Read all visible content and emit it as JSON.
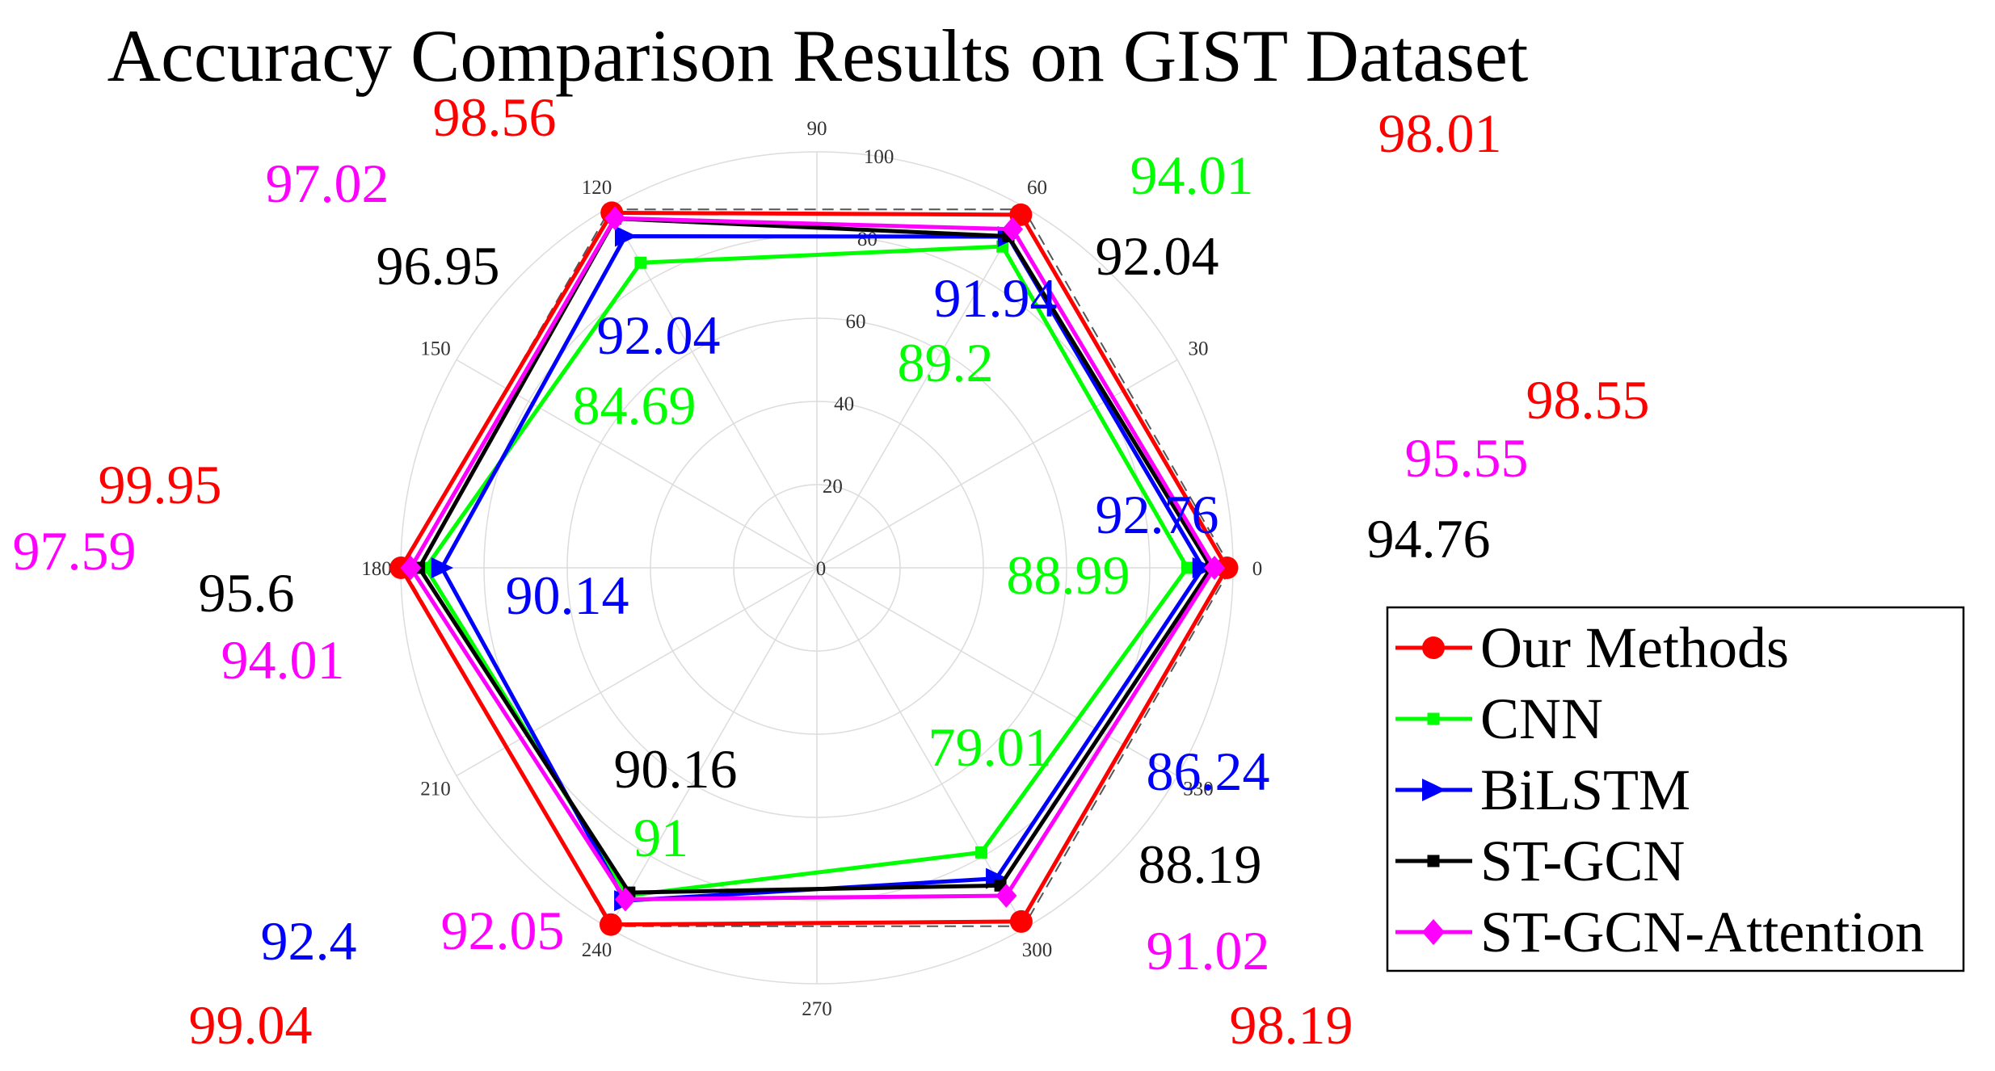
{
  "chart_data": {
    "type": "radar",
    "title": "Accuracy Comparison Results on GIST Dataset",
    "angles": [
      0,
      60,
      120,
      180,
      240,
      300
    ],
    "angle_ticks": [
      "0",
      "30",
      "60",
      "90",
      "120",
      "150",
      "180",
      "210",
      "240",
      "270",
      "300",
      "330"
    ],
    "radial_ticks": [
      "0",
      "20",
      "40",
      "60",
      "80",
      "100"
    ],
    "rlim": [
      0,
      100
    ],
    "grid": true,
    "legend_position": "bottom-right",
    "series": [
      {
        "name": "Our Methods",
        "color": "#ff0000",
        "marker": "circle",
        "values": [
          98.55,
          98.01,
          98.56,
          99.95,
          99.04,
          98.19
        ]
      },
      {
        "name": "CNN",
        "color": "#00ff00",
        "marker": "square",
        "values": [
          88.99,
          89.2,
          84.69,
          94.01,
          91,
          79.01
        ]
      },
      {
        "name": "BiLSTM",
        "color": "#0000ff",
        "marker": "triangle-right",
        "values": [
          92.76,
          91.94,
          92.04,
          90.14,
          92.4,
          86.24
        ]
      },
      {
        "name": "ST-GCN",
        "color": "#000000",
        "marker": "square",
        "values": [
          94.76,
          92.04,
          96.95,
          95.6,
          90.16,
          88.19
        ]
      },
      {
        "name": "ST-GCN-Attention",
        "color": "#ff00ff",
        "marker": "diamond",
        "values": [
          95.55,
          94.01,
          97.02,
          97.59,
          92.05,
          91.02
        ]
      }
    ],
    "value_labels": [
      {
        "text": "98.55",
        "color": "#ff0000"
      },
      {
        "text": "95.55",
        "color": "#ff00ff"
      },
      {
        "text": "94.76",
        "color": "#000000"
      },
      {
        "text": "92.76",
        "color": "#0000ff"
      },
      {
        "text": "88.99",
        "color": "#00ff00"
      },
      {
        "text": "98.01",
        "color": "#ff0000"
      },
      {
        "text": "94.01",
        "color": "#00ff00"
      },
      {
        "text": "92.04",
        "color": "#000000"
      },
      {
        "text": "91.94",
        "color": "#0000ff"
      },
      {
        "text": "89.2",
        "color": "#00ff00"
      },
      {
        "text": "98.56",
        "color": "#ff0000"
      },
      {
        "text": "97.02",
        "color": "#ff00ff"
      },
      {
        "text": "96.95",
        "color": "#000000"
      },
      {
        "text": "92.04",
        "color": "#0000ff"
      },
      {
        "text": "84.69",
        "color": "#00ff00"
      },
      {
        "text": "99.95",
        "color": "#ff0000"
      },
      {
        "text": "97.59",
        "color": "#ff00ff"
      },
      {
        "text": "95.6",
        "color": "#000000"
      },
      {
        "text": "94.01",
        "color": "#ff00ff"
      },
      {
        "text": "90.14",
        "color": "#0000ff"
      },
      {
        "text": "90.16",
        "color": "#000000"
      },
      {
        "text": "91",
        "color": "#00ff00"
      },
      {
        "text": "92.05",
        "color": "#ff00ff"
      },
      {
        "text": "92.4",
        "color": "#0000ff"
      },
      {
        "text": "99.04",
        "color": "#ff0000"
      },
      {
        "text": "79.01",
        "color": "#00ff00"
      },
      {
        "text": "86.24",
        "color": "#0000ff"
      },
      {
        "text": "88.19",
        "color": "#000000"
      },
      {
        "text": "91.02",
        "color": "#ff00ff"
      },
      {
        "text": "98.19",
        "color": "#ff0000"
      }
    ]
  }
}
